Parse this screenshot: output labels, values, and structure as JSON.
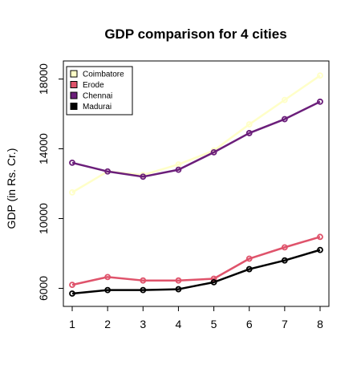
{
  "chart_data": {
    "type": "line",
    "title": "GDP comparison for 4 cities",
    "xlabel": "",
    "ylabel": "GDP (in Rs. Cr.)",
    "x": [
      1,
      2,
      3,
      4,
      5,
      6,
      7,
      8
    ],
    "xlim": [
      1,
      8
    ],
    "ylim": [
      5700,
      18300
    ],
    "y_ticks": [
      6000,
      10000,
      14000,
      18000
    ],
    "grid": false,
    "legend_position": "top-left",
    "series": [
      {
        "name": "Coimbatore",
        "color": "#FFFFC8",
        "values": [
          11500,
          12700,
          12500,
          13100,
          13900,
          15400,
          16800,
          18200
        ]
      },
      {
        "name": "Erode",
        "color": "#DF536B",
        "values": [
          6200,
          6650,
          6450,
          6450,
          6550,
          7700,
          8350,
          8950
        ]
      },
      {
        "name": "Chennai",
        "color": "#6B1E7A",
        "values": [
          13200,
          12700,
          12400,
          12800,
          13800,
          14900,
          15700,
          16700
        ]
      },
      {
        "name": "Madurai",
        "color": "#000000",
        "values": [
          5700,
          5900,
          5900,
          5950,
          6350,
          7100,
          7600,
          8200
        ]
      }
    ]
  }
}
